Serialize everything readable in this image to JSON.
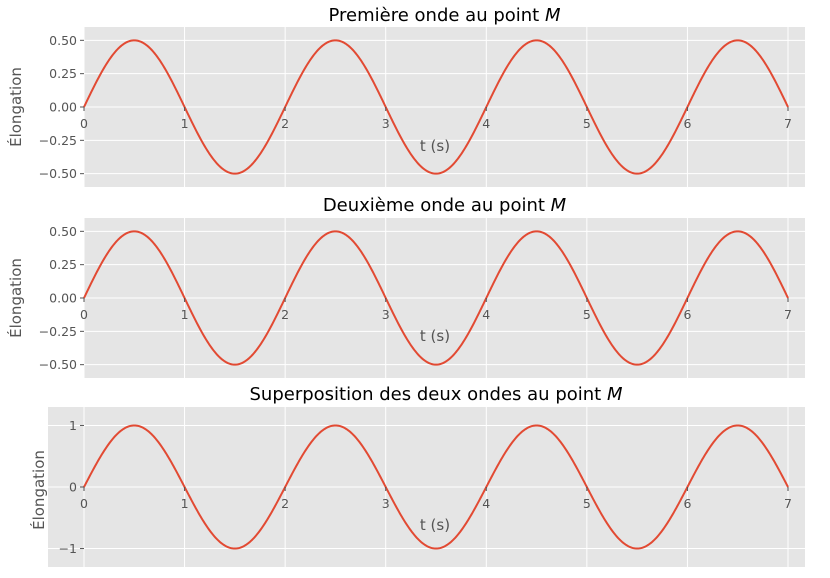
{
  "chart_data": [
    {
      "type": "line",
      "title": "Première onde au point M",
      "title_prefix": "Première onde au point ",
      "title_var": "M",
      "xlabel": "t (s)",
      "ylabel": "Élongation",
      "xlim": [
        0,
        7
      ],
      "ylim": [
        -0.6,
        0.6
      ],
      "xticks": [
        0,
        1,
        2,
        3,
        4,
        5,
        6,
        7
      ],
      "xtick_labels": [
        "0",
        "1",
        "2",
        "3",
        "4",
        "5",
        "6",
        "7"
      ],
      "yticks": [
        -0.5,
        -0.25,
        0,
        0.25,
        0.5
      ],
      "ytick_labels": [
        "−0.50",
        "−0.25",
        "0.00",
        "0.25",
        "0.50"
      ],
      "grid": true,
      "series": [
        {
          "amplitude": 0.5,
          "period": 2,
          "color": "#e24a33"
        }
      ]
    },
    {
      "type": "line",
      "title": "Deuxième onde au point M",
      "title_prefix": "Deuxième onde au point ",
      "title_var": "M",
      "xlabel": "t (s)",
      "ylabel": "Élongation",
      "xlim": [
        0,
        7
      ],
      "ylim": [
        -0.6,
        0.6
      ],
      "xticks": [
        0,
        1,
        2,
        3,
        4,
        5,
        6,
        7
      ],
      "xtick_labels": [
        "0",
        "1",
        "2",
        "3",
        "4",
        "5",
        "6",
        "7"
      ],
      "yticks": [
        -0.5,
        -0.25,
        0,
        0.25,
        0.5
      ],
      "ytick_labels": [
        "−0.50",
        "−0.25",
        "0.00",
        "0.25",
        "0.50"
      ],
      "grid": true,
      "series": [
        {
          "amplitude": 0.5,
          "period": 2,
          "color": "#e24a33"
        }
      ]
    },
    {
      "type": "line",
      "title": "Superposition des deux ondes au point M",
      "title_prefix": "Superposition des deux ondes au point ",
      "title_var": "M",
      "xlabel": "t (s)",
      "ylabel": "Élongation",
      "xlim": [
        0,
        7
      ],
      "ylim": [
        -1.3,
        1.3
      ],
      "xticks": [
        0,
        1,
        2,
        3,
        4,
        5,
        6,
        7
      ],
      "xtick_labels": [
        "0",
        "1",
        "2",
        "3",
        "4",
        "5",
        "6",
        "7"
      ],
      "yticks": [
        -1,
        0,
        1
      ],
      "ytick_labels": [
        "−1",
        "0",
        "1"
      ],
      "grid": true,
      "series": [
        {
          "amplitude": 1.0,
          "period": 2,
          "color": "#e24a33"
        }
      ]
    }
  ]
}
